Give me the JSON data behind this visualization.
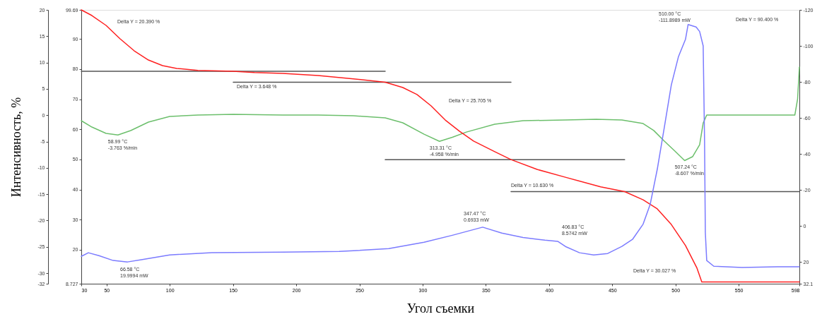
{
  "chart_data": {
    "type": "line",
    "xlabel": "Угол съемки",
    "ylabel": "Интенсивность, %",
    "xlim": [
      30,
      598
    ],
    "xticks": [
      30,
      50,
      100,
      150,
      200,
      250,
      300,
      350,
      400,
      450,
      500,
      550,
      598
    ],
    "ylim": [
      -32,
      20
    ],
    "yticks": [
      -32,
      -30,
      -25,
      -20,
      -15,
      -10,
      -5,
      0,
      5,
      10,
      15,
      20
    ],
    "y2lim": [
      32.1,
      -120
    ],
    "y2ticks": [
      32.1,
      20,
      0,
      -20,
      -40,
      -60,
      -80,
      -100,
      -120
    ],
    "y3lim": [
      8.727,
      99.69
    ],
    "y3ticks": [
      8.727,
      20,
      30,
      40,
      50,
      60,
      70,
      80,
      90,
      99.69
    ],
    "series": [
      {
        "axis": "y",
        "color": "#6cbf6c",
        "x": [
          30,
          38.4,
          49.6,
          59.0,
          69.1,
          83.1,
          99.9,
          122.2,
          150.2,
          189.3,
          217.3,
          245.2,
          270.4,
          284.3,
          301.1,
          313.31,
          323.5,
          334.6,
          357.0,
          379.4,
          412.9,
          437.2,
          457.6,
          474.4,
          482.8,
          491.2,
          499.5,
          507.24,
          513.5,
          519.1,
          521.9,
          524.7,
          552.6,
          580.6,
          594.4,
          596.6,
          598
        ],
        "values": [
          -1.04,
          -2.25,
          -3.45,
          -3.763,
          -2.92,
          -1.31,
          -0.24,
          0.03,
          0.17,
          0.03,
          0.03,
          -0.1,
          -0.51,
          -1.44,
          -3.6,
          -4.958,
          -4.2,
          -3.2,
          -1.71,
          -1.04,
          -0.91,
          -0.77,
          -0.91,
          -1.58,
          -2.9,
          -4.93,
          -6.81,
          -8.607,
          -7.88,
          -5.6,
          -1.5,
          0.03,
          0.03,
          0.03,
          0.03,
          3.11,
          9.14
        ]
      },
      {
        "axis": "y2",
        "color": "#7b7bff",
        "x": [
          30,
          35.6,
          44.0,
          55.2,
          66.58,
          77.5,
          99.9,
          133.4,
          189.3,
          234.0,
          245.2,
          273.2,
          301.1,
          323.5,
          347.47,
          362.6,
          379.4,
          396.7,
          406.83,
          412.9,
          424.1,
          435.3,
          446.4,
          457.6,
          466.0,
          474.4,
          480.0,
          485.6,
          491.2,
          496.7,
          502.3,
          507.9,
          510.0,
          516.3,
          519.1,
          521.9,
          523.0,
          523.6,
          524.7,
          530.3,
          552.6,
          580.6,
          598
        ],
        "values": [
          16.9,
          14.9,
          16.5,
          19.2,
          19.9994,
          18.8,
          16.1,
          14.9,
          14.6,
          14.2,
          13.8,
          12.6,
          9.1,
          5.2,
          0.6933,
          4.0,
          6.4,
          7.9,
          8.5742,
          11.4,
          14.9,
          16.1,
          15.3,
          11.4,
          7.5,
          -1.0,
          -12.0,
          -31.5,
          -54.9,
          -78.3,
          -93.9,
          -103.6,
          -111.8989,
          -110.5,
          -108.0,
          -100.0,
          -47.0,
          3.6,
          19.2,
          22.4,
          23.1,
          22.7,
          22.7
        ]
      },
      {
        "axis": "y3",
        "color": "#555555",
        "x": [
          30,
          270.4
        ],
        "values": [
          79.3,
          79.3
        ]
      },
      {
        "axis": "y3",
        "color": "#555555",
        "x": [
          150.2,
          369.9
        ],
        "values": [
          75.65,
          75.65
        ]
      },
      {
        "axis": "y3",
        "color": "#555555",
        "x": [
          270.4,
          459.8
        ],
        "values": [
          49.95,
          49.95
        ]
      },
      {
        "axis": "y3",
        "color": "#555555",
        "x": [
          369.9,
          598
        ],
        "values": [
          39.32,
          39.32
        ]
      },
      {
        "axis": "y3",
        "color": "#ff2020",
        "x": [
          30,
          38.4,
          49.6,
          60.7,
          71.9,
          83.1,
          94.3,
          105.5,
          122.2,
          150.2,
          166.9,
          189.3,
          217.3,
          245.2,
          270.4,
          284.3,
          295.5,
          306.7,
          317.9,
          329.1,
          340.3,
          357.0,
          369.9,
          390.5,
          412.9,
          440.8,
          459.8,
          474.4,
          485.6,
          496.7,
          507.9,
          517.0,
          520.8,
          552.6,
          598
        ],
        "values": [
          99.69,
          97.81,
          94.53,
          90.08,
          86.09,
          83.04,
          81.17,
          80.23,
          79.6,
          79.3,
          78.9,
          78.6,
          77.9,
          76.8,
          75.65,
          73.9,
          71.6,
          67.8,
          63.1,
          59.4,
          56.1,
          52.6,
          49.95,
          46.7,
          44.1,
          40.9,
          39.32,
          36.6,
          33.6,
          28.4,
          21.4,
          13.9,
          9.29,
          9.29,
          9.29
        ]
      }
    ],
    "annotations": [
      "Delta Y = 20.390 %",
      "Delta Y = 3.648 %",
      "Delta Y = 25.705 %",
      "Delta Y = 10.630 %",
      "Delta Y = 30.027 %",
      "Delta Y = 90.400 %",
      {
        "text": "58.99 °C\n-3.763 %/min",
        "x": 59.0,
        "y": -3.763
      },
      {
        "text": "313.31 °C\n-4.958 %/min",
        "x": 313.31,
        "y": -4.958
      },
      {
        "text": "507.24 °C\n-8.607 %/min",
        "x": 507.24,
        "y": -8.607
      },
      "66.58 °C\n19.9994 mW",
      "347.47 °C\n0.6933 mW",
      "406.83 °C\n8.5742 mW",
      "510.00 °C\n-111.8989 mW"
    ]
  }
}
